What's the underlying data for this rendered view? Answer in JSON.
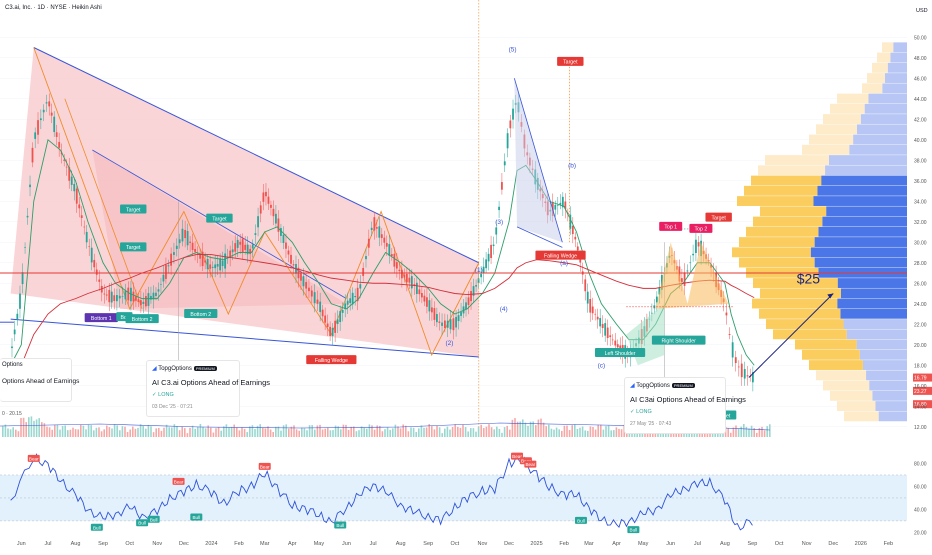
{
  "header": {
    "title": "C3.ai, Inc. · 1D · NYSE · Heikin Ashi",
    "currency": "USD"
  },
  "price_axis": {
    "ticks": [
      "50.00",
      "48.00",
      "46.00",
      "44.00",
      "42.00",
      "40.00",
      "38.00",
      "36.00",
      "34.00",
      "32.00",
      "30.00",
      "28.00",
      "26.00",
      "24.00",
      "22.00",
      "20.00",
      "18.00",
      "16.00",
      "14.00",
      "12.00"
    ]
  },
  "rsi_axis": {
    "ticks": [
      "80.00",
      "60.00",
      "40.00",
      "20.00"
    ]
  },
  "time_axis": {
    "ticks": [
      "Jun",
      "Jul",
      "Aug",
      "Sep",
      "Oct",
      "Nov",
      "Dec",
      "2024",
      "Feb",
      "Mar",
      "Apr",
      "May",
      "Jun",
      "Jul",
      "Aug",
      "Sep",
      "Oct",
      "Nov",
      "Dec",
      "2025",
      "Feb",
      "Mar",
      "Apr",
      "May",
      "Jun",
      "Jul",
      "Aug",
      "Sep",
      "Oct",
      "Nov",
      "Dec",
      "2026",
      "Feb"
    ]
  },
  "price_badges": {
    "last": "16.79",
    "mid": "23.27",
    "low": "16.80"
  },
  "annotations": {
    "target_left_1": "Target",
    "target_left_2": "Target",
    "target_left_3": "Target",
    "bottom_1": "Bottom 1",
    "bottom_1b": "Bot",
    "bottom_2a": "Bottom 2",
    "bottom_2b": "Bottom 2",
    "falling_wedge_1": "Falling Wedge",
    "wave_1": "(1)",
    "wave_2": "(2)",
    "wave_3": "(3)",
    "wave_4": "(4)",
    "wave_5": "(5)",
    "wave_a": "(a)",
    "wave_b": "(b)",
    "wave_c": "(c)",
    "target_top": "Target",
    "falling_wedge_2": "Falling Wedge",
    "top_1": "Top 1",
    "top_2": "Top 2",
    "target_right": "Target",
    "left_shoulder": "Left Shoulder",
    "right_shoulder": "Right Shoulder",
    "target_bottom": "Target",
    "price_target": "$25"
  },
  "volume_label": "0 · 20.15",
  "rsi_labels": [
    "Bear",
    "Bear",
    "Bear",
    "Bull",
    "Bull",
    "Bull",
    "Bull",
    "Bull",
    "Bear",
    "Bear",
    "Bear",
    "Bull",
    "Bull"
  ],
  "cards": [
    {
      "brand": "TopgOptions",
      "premium": "PREMIUM",
      "title": "AI C3.ai Options Ahead of Earnings",
      "side": "LONG",
      "time": "03 Dec '25 · 07:21"
    },
    {
      "brand": "TopgOptions",
      "premium": "PREMIUM",
      "title": "AI C3ai Options Ahead of Earnings",
      "side": "LONG",
      "time": "27 May '25 · 07:43"
    }
  ],
  "left_card_fragment": "Options Ahead of Earnings",
  "left_card_brand_fragment": "Options",
  "colors": {
    "up": "#26a69a",
    "down": "#ef5350",
    "wedge": "#f8c7c9",
    "trend": "#3955d8",
    "rsi": "#2f52d8",
    "rsi_band": "#e3f1fc"
  },
  "chart_data": [
    {
      "type": "candlestick",
      "title": "C3.ai, Inc. · 1D · NYSE · Heikin Ashi",
      "y_unit": "USD",
      "ylim": [
        11,
        51
      ],
      "x": [
        "2023-05-20",
        "2023-06-01",
        "2023-06-15",
        "2023-07-01",
        "2023-07-15",
        "2023-08-01",
        "2023-08-15",
        "2023-09-01",
        "2023-09-15",
        "2023-10-01",
        "2023-10-15",
        "2023-11-01",
        "2023-11-15",
        "2023-12-01",
        "2023-12-15",
        "2024-01-01",
        "2024-01-15",
        "2024-02-01",
        "2024-02-15",
        "2024-03-01",
        "2024-03-15",
        "2024-04-01",
        "2024-04-15",
        "2024-05-01",
        "2024-05-15",
        "2024-06-01",
        "2024-06-15",
        "2024-07-01",
        "2024-07-15",
        "2024-08-01",
        "2024-08-15",
        "2024-09-01",
        "2024-09-15",
        "2024-10-01",
        "2024-10-15",
        "2024-11-01",
        "2024-11-15",
        "2024-12-01",
        "2024-12-10",
        "2024-12-20",
        "2025-01-01",
        "2025-01-15",
        "2025-02-01",
        "2025-02-15",
        "2025-03-01",
        "2025-03-15",
        "2025-04-01",
        "2025-04-15",
        "2025-05-01",
        "2025-05-15",
        "2025-06-01",
        "2025-06-15",
        "2025-07-01",
        "2025-07-15",
        "2025-08-01",
        "2025-08-08",
        "2025-08-15",
        "2025-08-25",
        "2025-09-03"
      ],
      "close": [
        19,
        25,
        40,
        44,
        39,
        35,
        30,
        25,
        24.5,
        25,
        24,
        25,
        28,
        31,
        29,
        27.5,
        28,
        30,
        29,
        35,
        32,
        28,
        26,
        24,
        21,
        24,
        25,
        32,
        30,
        27,
        26,
        24,
        22,
        22,
        24,
        27,
        30,
        41,
        44,
        39,
        36,
        33,
        34,
        30,
        24,
        22,
        20,
        19,
        21,
        24,
        29,
        26,
        30,
        28,
        24,
        20,
        18,
        17,
        16.8
      ],
      "series": [
        {
          "name": "Fast MA",
          "values": [
            18,
            20,
            34,
            40,
            39,
            36,
            32,
            28,
            26,
            25,
            24.5,
            24.5,
            26,
            28.5,
            29,
            28.5,
            28.3,
            29,
            29,
            31,
            31.5,
            30,
            28,
            26,
            24,
            23.5,
            24.5,
            27,
            29,
            28,
            27,
            25.5,
            24,
            23,
            23.5,
            25,
            27,
            32,
            37,
            37.5,
            36,
            34,
            33.5,
            31,
            27,
            24,
            22,
            20.5,
            20.5,
            22,
            25,
            26,
            28,
            28,
            26,
            23,
            21,
            19,
            18
          ]
        },
        {
          "name": "Slow MA",
          "values": [
            17,
            18,
            21,
            23,
            24,
            24.5,
            25,
            25.5,
            26,
            26.5,
            27,
            27.5,
            28,
            28.5,
            28.8,
            28.8,
            28.6,
            28.4,
            28.2,
            28,
            27.8,
            27.5,
            27.2,
            26.8,
            26.5,
            26.3,
            26.1,
            26,
            26,
            25.9,
            25.8,
            25.6,
            25.3,
            25,
            24.9,
            25,
            25.5,
            26.5,
            27.5,
            28,
            28.3,
            28.2,
            28,
            27.8,
            27.3,
            26.8,
            26.2,
            25.8,
            25.5,
            25.5,
            25.8,
            26,
            26.2,
            26.3,
            26.2,
            25.8,
            25.5,
            25,
            24.6
          ]
        }
      ],
      "horizontal_level": 27.0,
      "projection": {
        "from": [
          "2025-08-28",
          16.8
        ],
        "to": [
          "2025-12-01",
          25
        ],
        "label": "$25"
      },
      "volume_profile": {
        "price_range": [
          12,
          50
        ],
        "sides": [
          "up",
          "down"
        ]
      }
    },
    {
      "type": "line",
      "name": "RSI",
      "ylim": [
        16,
        90
      ],
      "band": [
        30,
        70
      ],
      "x": [
        "2023-05-20",
        "2023-06-15",
        "2023-07-01",
        "2023-07-15",
        "2023-08-01",
        "2023-08-15",
        "2023-09-01",
        "2023-09-15",
        "2023-10-01",
        "2023-10-15",
        "2023-11-01",
        "2023-11-15",
        "2023-12-01",
        "2023-12-15",
        "2024-01-01",
        "2024-01-15",
        "2024-02-01",
        "2024-02-15",
        "2024-03-01",
        "2024-03-15",
        "2024-04-01",
        "2024-04-15",
        "2024-05-01",
        "2024-05-15",
        "2024-06-01",
        "2024-06-15",
        "2024-07-01",
        "2024-07-15",
        "2024-08-01",
        "2024-08-15",
        "2024-09-01",
        "2024-09-15",
        "2024-10-01",
        "2024-10-15",
        "2024-11-01",
        "2024-11-15",
        "2024-12-01",
        "2024-12-15",
        "2025-01-01",
        "2025-01-15",
        "2025-02-01",
        "2025-02-15",
        "2025-03-01",
        "2025-03-15",
        "2025-04-01",
        "2025-04-15",
        "2025-05-01",
        "2025-05-15",
        "2025-06-01",
        "2025-06-15",
        "2025-07-01",
        "2025-07-15",
        "2025-08-01",
        "2025-08-15",
        "2025-09-01"
      ],
      "values": [
        48,
        86,
        78,
        66,
        52,
        40,
        32,
        36,
        42,
        34,
        38,
        50,
        55,
        62,
        55,
        45,
        56,
        60,
        72,
        58,
        44,
        40,
        36,
        28,
        42,
        52,
        62,
        55,
        44,
        38,
        34,
        30,
        42,
        50,
        56,
        58,
        80,
        84,
        70,
        60,
        52,
        54,
        40,
        32,
        26,
        30,
        36,
        40,
        52,
        58,
        62,
        64,
        48,
        24,
        30
      ]
    }
  ]
}
